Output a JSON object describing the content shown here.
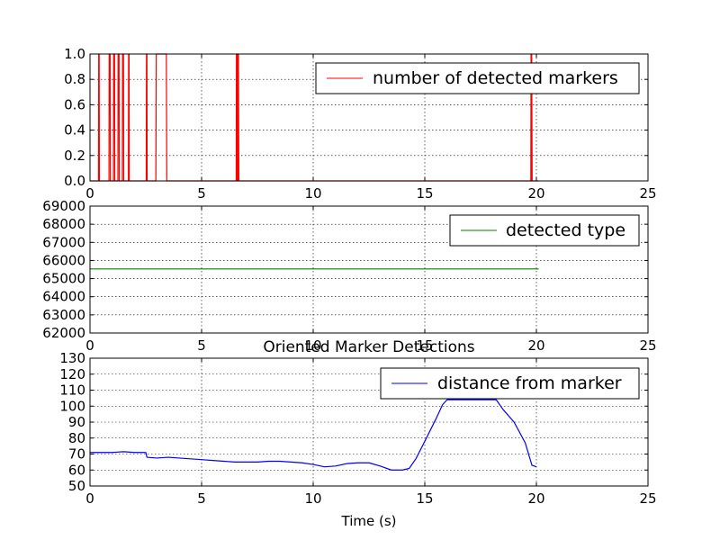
{
  "figure": {
    "title": "Oriented Marker Detections",
    "xlabel": "Time (s)"
  },
  "chart_data": [
    {
      "type": "line",
      "xlim": [
        0,
        25
      ],
      "ylim": [
        0,
        1
      ],
      "xticks": [
        0,
        5,
        10,
        15,
        20,
        25
      ],
      "yticks": [
        0.0,
        0.2,
        0.4,
        0.6,
        0.8,
        1.0
      ],
      "xtick_labels": [
        "0",
        "5",
        "10",
        "15",
        "20",
        "25"
      ],
      "ytick_labels": [
        "0.0",
        "0.2",
        "0.4",
        "0.6",
        "0.8",
        "1.0"
      ],
      "grid": true,
      "legend_position": "top-right",
      "series": [
        {
          "name": "number of detected markers",
          "color": "#ff0000",
          "x": [
            0,
            0.38,
            0.39,
            0.41,
            0.42,
            0.85,
            0.86,
            0.9,
            0.91,
            1.05,
            1.06,
            1.1,
            1.11,
            1.25,
            1.26,
            1.3,
            1.31,
            1.45,
            1.46,
            1.5,
            1.51,
            1.72,
            1.73,
            1.75,
            1.76,
            2.52,
            2.53,
            2.55,
            2.56,
            2.95,
            2.97,
            3.42,
            3.44,
            6.55,
            6.56,
            6.58,
            6.59,
            6.61,
            6.62,
            6.64,
            6.65,
            6.67,
            6.68,
            19.75,
            19.76,
            19.78,
            19.79,
            19.81,
            19.82,
            20.1
          ],
          "y": [
            0,
            0,
            1,
            1,
            0,
            0,
            1,
            1,
            0,
            0,
            1,
            1,
            0,
            0,
            1,
            1,
            0,
            0,
            1,
            1,
            0,
            0,
            1,
            1,
            0,
            0,
            1,
            1,
            0,
            0,
            1,
            1,
            0,
            0,
            1,
            0,
            1,
            0,
            1,
            0,
            1,
            0,
            0,
            0,
            1,
            0,
            1,
            0,
            0,
            0
          ]
        }
      ]
    },
    {
      "type": "line",
      "xlim": [
        0,
        25
      ],
      "ylim": [
        62000,
        69000
      ],
      "xticks": [
        0,
        5,
        10,
        15,
        20,
        25
      ],
      "yticks": [
        62000,
        63000,
        64000,
        65000,
        66000,
        67000,
        68000,
        69000
      ],
      "xtick_labels": [
        "0",
        "5",
        "10",
        "15",
        "20",
        "25"
      ],
      "ytick_labels": [
        "62000",
        "63000",
        "64000",
        "65000",
        "66000",
        "67000",
        "68000",
        "69000"
      ],
      "grid": true,
      "legend_position": "top-right",
      "series": [
        {
          "name": "detected type",
          "color": "#008000",
          "x": [
            0,
            20.1
          ],
          "y": [
            65535,
            65535
          ]
        }
      ]
    },
    {
      "type": "line",
      "xlim": [
        0,
        25
      ],
      "ylim": [
        50,
        130
      ],
      "xticks": [
        0,
        5,
        10,
        15,
        20,
        25
      ],
      "yticks": [
        50,
        60,
        70,
        80,
        90,
        100,
        110,
        120,
        130
      ],
      "xtick_labels": [
        "0",
        "5",
        "10",
        "15",
        "20",
        "25"
      ],
      "ytick_labels": [
        "50",
        "60",
        "70",
        "80",
        "90",
        "100",
        "110",
        "120",
        "130"
      ],
      "grid": true,
      "legend_position": "top-right",
      "series": [
        {
          "name": "distance from marker",
          "color": "#0000ff",
          "x": [
            0,
            0.5,
            1.0,
            1.5,
            2.0,
            2.5,
            2.55,
            3.0,
            3.5,
            4.0,
            4.5,
            5.0,
            5.5,
            6.0,
            6.5,
            7.0,
            7.5,
            8.0,
            8.5,
            9.0,
            9.5,
            10.0,
            10.5,
            11.0,
            11.5,
            12.0,
            12.5,
            13.0,
            13.5,
            14.0,
            14.3,
            14.6,
            15.0,
            15.5,
            15.8,
            16.0,
            18.2,
            18.5,
            19.0,
            19.5,
            19.8,
            20.0
          ],
          "y": [
            71,
            71,
            71,
            71.5,
            71,
            71,
            68,
            67.5,
            68,
            67.5,
            67,
            66.5,
            66,
            65.5,
            65,
            65,
            65,
            65.5,
            65.5,
            65,
            64.5,
            63.5,
            62,
            62.5,
            64,
            64.5,
            64.5,
            62.5,
            60,
            60,
            61,
            67,
            78,
            92,
            101,
            104,
            104,
            98,
            90,
            77,
            63,
            62
          ]
        }
      ]
    }
  ]
}
